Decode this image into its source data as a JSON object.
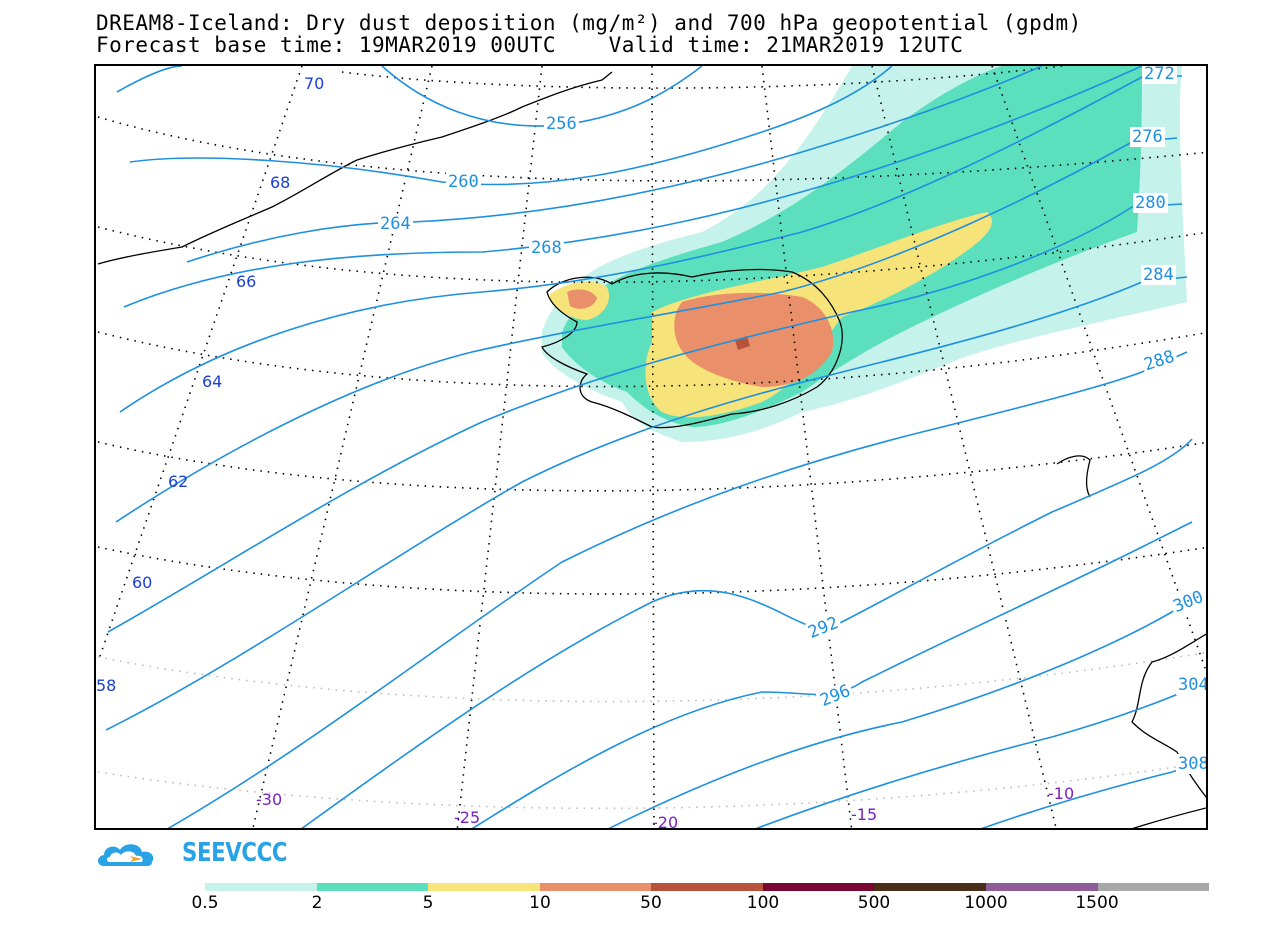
{
  "title": {
    "line1": "DREAM8-Iceland: Dry dust deposition (mg/m²) and 700 hPa geopotential (gpdm)",
    "line2": "Forecast base time: 19MAR2019 00UTC    Valid time: 21MAR2019 12UTC"
  },
  "logo": {
    "text": "SEEVCCC",
    "icon": "cloud-logo-icon"
  },
  "colors": {
    "contour": "#1e90e0",
    "lat_label": "#1a3fd6",
    "lon_label": "#7a1fc0",
    "coast": "#000000"
  },
  "geopotential_contours": [
    "256",
    "260",
    "264",
    "268",
    "272",
    "276",
    "280",
    "284",
    "288",
    "292",
    "296",
    "300",
    "304",
    "308"
  ],
  "geopotential_labels_visible": [
    "256",
    "260",
    "264",
    "268",
    "272",
    "276",
    "280",
    "284",
    "288",
    "292",
    "296",
    "300",
    "304",
    "308"
  ],
  "latitude_labels": [
    "70",
    "68",
    "66",
    "64",
    "62",
    "60",
    "58"
  ],
  "longitude_labels": [
    "-30",
    "-25",
    "-20",
    "-15",
    "-10"
  ],
  "legend": {
    "labels": [
      "0.5",
      "2",
      "5",
      "10",
      "50",
      "100",
      "500",
      "1000",
      "1500"
    ],
    "colors": [
      "#c5f2ea",
      "#5cdfbc",
      "#f6e37a",
      "#e9906a",
      "#b8523a",
      "#7a0830",
      "#4a2e18",
      "#8e5c96",
      "#a8a8a8"
    ]
  }
}
